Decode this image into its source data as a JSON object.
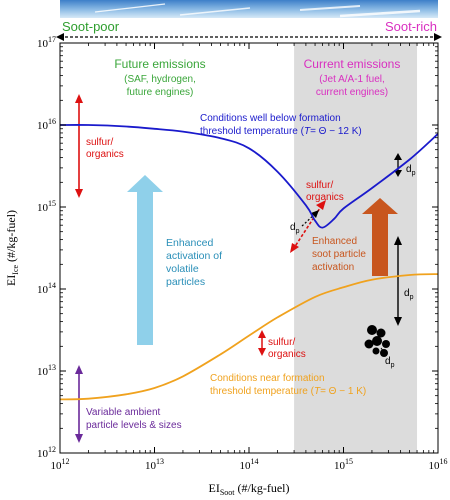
{
  "chart_data": {
    "type": "line",
    "xscale": "log",
    "yscale": "log",
    "xlim": [
      1000000000000.0,
      1e+16
    ],
    "ylim": [
      1000000000000.0,
      1e+17
    ],
    "xlabel": {
      "main": "EI",
      "sub": "Soot",
      "rest": " (#/kg-fuel)"
    },
    "ylabel": {
      "main": "EI",
      "sub": "Ice",
      "rest": " (#/kg-fuel)"
    },
    "xticks": [
      {
        "value": 1000000000000.0,
        "base": "10",
        "exp": "12"
      },
      {
        "value": 10000000000000.0,
        "base": "10",
        "exp": "13"
      },
      {
        "value": 100000000000000.0,
        "base": "10",
        "exp": "14"
      },
      {
        "value": 1000000000000000.0,
        "base": "10",
        "exp": "15"
      },
      {
        "value": 1e+16,
        "base": "10",
        "exp": "16"
      }
    ],
    "yticks": [
      {
        "value": 1000000000000.0,
        "base": "10",
        "exp": "12"
      },
      {
        "value": 10000000000000.0,
        "base": "10",
        "exp": "13"
      },
      {
        "value": 100000000000000.0,
        "base": "10",
        "exp": "14"
      },
      {
        "value": 1000000000000000.0,
        "base": "10",
        "exp": "15"
      },
      {
        "value": 1e+16,
        "base": "10",
        "exp": "16"
      },
      {
        "value": 1e+17,
        "base": "10",
        "exp": "17"
      }
    ],
    "shaded_region": {
      "x": [
        300000000000000.0,
        6000000000000000.0
      ],
      "color": "#dcdcdc"
    },
    "series": [
      {
        "color": "#1a1acc",
        "points": [
          [
            1000000000000.0,
            1e+16
          ],
          [
            2000000000000.0,
            1e+16
          ],
          [
            5000000000000.0,
            9600000000000000.0
          ],
          [
            10000000000000.0,
            9000000000000000.0
          ],
          [
            20000000000000.0,
            8300000000000000.0
          ],
          [
            50000000000000.0,
            6900000000000000.0
          ],
          [
            100000000000000.0,
            5200000000000000.0
          ],
          [
            200000000000000.0,
            2700000000000000.0
          ],
          [
            400000000000000.0,
            1050000000000000.0
          ],
          [
            500000000000000.0,
            680000000000000.0
          ],
          [
            600000000000000.0,
            560000000000000.0
          ],
          [
            800000000000000.0,
            720000000000000.0
          ],
          [
            1000000000000000.0,
            960000000000000.0
          ],
          [
            2000000000000000.0,
            1700000000000000.0
          ],
          [
            5000000000000000.0,
            3800000000000000.0
          ],
          [
            1e+16,
            7800000000000000.0
          ]
        ]
      },
      {
        "color": "#f0a21e",
        "points": [
          [
            1000000000000.0,
            4500000000000.0
          ],
          [
            2000000000000.0,
            4600000000000.0
          ],
          [
            5000000000000.0,
            5200000000000.0
          ],
          [
            10000000000000.0,
            6200000000000.0
          ],
          [
            20000000000000.0,
            8600000000000.0
          ],
          [
            50000000000000.0,
            16000000000000.0
          ],
          [
            100000000000000.0,
            27000000000000.0
          ],
          [
            200000000000000.0,
            45000000000000.0
          ],
          [
            500000000000000.0,
            80000000000000.0
          ],
          [
            1000000000000000.0,
            105000000000000.0
          ],
          [
            2000000000000000.0,
            130000000000000.0
          ],
          [
            5000000000000000.0,
            148000000000000.0
          ],
          [
            1e+16,
            152000000000000.0
          ]
        ]
      }
    ]
  },
  "top_banner": {
    "left_label": "Soot-poor",
    "right_label": "Soot-rich",
    "left_color": "#2e9e2e",
    "right_color": "#d92fc0"
  },
  "annotations": {
    "future": {
      "lines": [
        "Future emissions",
        "(SAF, hydrogen,",
        "future engines)"
      ],
      "color": "#3aa63a"
    },
    "current": {
      "lines": [
        "Current emissions",
        "(Jet A/A-1 fuel,",
        "current engines)"
      ],
      "color": "#d92fc0"
    },
    "blue_condition": {
      "lines": [
        "Conditions well below formation",
        "threshold temperature (",
        "T",
        "= Θ − 12 K)"
      ],
      "color": "#1a1acc"
    },
    "orange_condition": {
      "lines": [
        "Conditions near formation",
        "threshold temperature (",
        "T",
        "= Θ − 1 K)"
      ],
      "color": "#f0a21e"
    },
    "sulfur_top": {
      "lines": [
        "sulfur/",
        "organics"
      ],
      "color": "#dd1111"
    },
    "sulfur_mid": {
      "lines": [
        "sulfur/",
        "organics"
      ],
      "color": "#dd1111"
    },
    "sulfur_low": {
      "lines": [
        "sulfur/",
        "organics"
      ],
      "color": "#dd1111"
    },
    "volatile": {
      "lines": [
        "Enhanced",
        "activation of",
        "volatile",
        "particles"
      ],
      "color": "#2a8fb8",
      "arrow_color": "#8fd0ea"
    },
    "soot": {
      "lines": [
        "Enhanced",
        "soot particle",
        "activation"
      ],
      "color": "#c8561e",
      "arrow_color": "#c8561e"
    },
    "ambient": {
      "lines": [
        "Variable ambient",
        "particle levels & sizes"
      ],
      "color": "#6a2a9a"
    },
    "dp_label": {
      "main": "d",
      "sub": "p"
    }
  }
}
